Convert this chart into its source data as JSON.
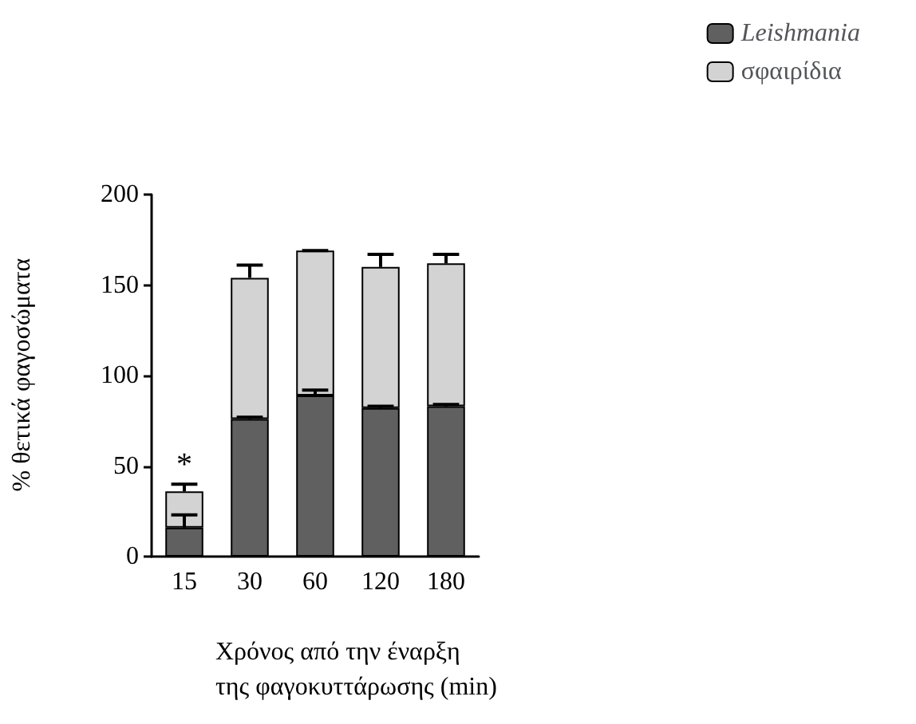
{
  "chart_data": {
    "type": "bar",
    "stacked": true,
    "xlabel": "Χρόνος από την έναρξη της φαγοκυττάρωσης (min)",
    "ylabel": "% θετικά φαγοσώματα",
    "categories": [
      "15",
      "30",
      "60",
      "120",
      "180"
    ],
    "series": [
      {
        "name": "Leishmania",
        "color": "#606060",
        "values": [
          16,
          76,
          89,
          82,
          83
        ],
        "errors": [
          [
            16,
            23
          ],
          [
            76,
            77
          ],
          [
            89,
            92
          ],
          [
            82,
            83
          ],
          [
            83,
            84
          ]
        ]
      },
      {
        "name": "σφαιρίδια",
        "color": "#d3d3d3",
        "values": [
          20,
          78,
          80,
          78,
          79
        ],
        "errors": [
          [
            36,
            40
          ],
          [
            154,
            161
          ],
          [
            169,
            169
          ],
          [
            160,
            167
          ],
          [
            162,
            167
          ]
        ]
      }
    ],
    "ylim": [
      0,
      200
    ],
    "yticks": [
      0,
      50,
      100,
      150,
      200
    ],
    "grid": false,
    "legend": "top right",
    "annotations": [
      {
        "text": "*",
        "x": "15",
        "y": 42
      }
    ]
  }
}
